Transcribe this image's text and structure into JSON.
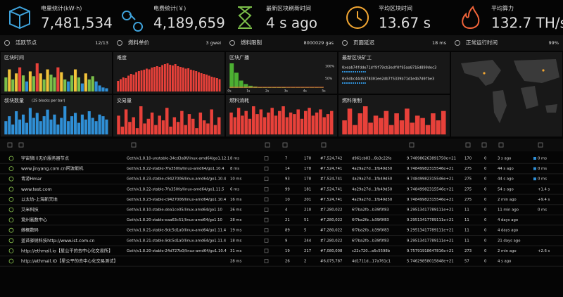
{
  "stats": [
    {
      "label": "电量统计(kW·h)",
      "value": "7,481,534",
      "color": "#3fa3dc"
    },
    {
      "label": "电费统计(￥)",
      "value": "4,189,659",
      "color": "#3fa3dc"
    },
    {
      "label": "最新区块刷新时间",
      "value": "4 s ago",
      "color": "#7cc04a"
    },
    {
      "label": "平均区块时间",
      "value": "13.67 s",
      "color": "#f2a632"
    },
    {
      "label": "平均算力",
      "value": "132.7 TH/s",
      "color": "#f2643a"
    }
  ],
  "summary": [
    {
      "label": "活跃节点",
      "value": "12/13",
      "color": "#7cc04a"
    },
    {
      "label": "燃料单价",
      "value": "3 gwei",
      "color": "#3fa3dc"
    },
    {
      "label": "燃料限制",
      "value": "8000029 gas",
      "color": "#3fa3dc"
    },
    {
      "label": "页面延迟",
      "value": "18 ms",
      "color": "#7cc04a"
    },
    {
      "label": "正常运行时间",
      "value": "99%",
      "color": "#7cc04a"
    }
  ],
  "panels": [
    {
      "title": "区块时间",
      "color": "#f2c23a",
      "values": [
        35,
        55,
        30,
        45,
        60,
        40,
        25,
        50,
        38,
        70,
        45,
        30,
        55,
        42,
        35,
        60,
        48,
        30,
        25,
        40,
        55,
        35,
        20,
        45,
        30,
        38,
        25,
        15,
        10,
        8
      ]
    },
    {
      "title": "难度",
      "color": "#e8413a",
      "values": [
        30,
        35,
        40,
        38,
        45,
        50,
        48,
        55,
        58,
        60,
        62,
        65,
        63,
        68,
        70,
        72,
        70,
        75,
        78,
        80,
        76,
        74,
        78,
        72,
        70,
        68,
        65,
        66,
        62,
        60,
        58,
        55,
        52,
        50,
        48,
        45,
        42,
        40,
        38,
        35
      ]
    },
    {
      "title": "区块广播",
      "color": "#4caf32",
      "values": [
        100,
        62,
        30,
        16,
        9,
        6,
        4,
        3,
        3,
        2,
        2,
        2,
        1,
        1,
        1,
        1,
        1,
        1,
        1,
        1
      ],
      "xticks": [
        "0s",
        "1s",
        "2s",
        "3s",
        "4s",
        "5s"
      ],
      "yticks": [
        "100%",
        "50%"
      ]
    },
    {
      "title": "最新区块矿工",
      "miners": [
        "0xeab74fdde71df9f79cb3edf0f95aa8716d890dec3",
        "0x5dbc44d5378301ee2db7f5339b71d1e4b7d0fbe3"
      ]
    },
    {
      "title": "叔块数量",
      "subtitle": "(25 blocks per bar)",
      "color": "#2f8fd6",
      "values": [
        40,
        55,
        30,
        70,
        45,
        60,
        35,
        80,
        50,
        65,
        40,
        55,
        75,
        45,
        60,
        30,
        50,
        85,
        40,
        55,
        65,
        35,
        60,
        45,
        70,
        50,
        40,
        60,
        55,
        45
      ]
    },
    {
      "title": "交易量",
      "color": "#e8413a",
      "values": [
        60,
        25,
        80,
        40,
        55,
        20,
        90,
        35,
        50,
        70,
        30,
        60,
        45,
        85,
        25,
        55,
        40,
        75,
        30,
        65,
        50,
        20,
        70,
        45,
        35,
        80,
        30,
        55
      ]
    },
    {
      "title": "燃料消耗",
      "color": "#e8413a",
      "values": [
        70,
        55,
        85,
        60,
        75,
        50,
        90,
        65,
        80,
        55,
        70,
        85,
        60,
        75,
        90,
        55,
        70,
        65,
        80,
        50,
        75,
        85,
        60,
        70,
        80,
        55,
        65,
        75
      ]
    },
    {
      "title": "燃料限制",
      "color": "#e8413a",
      "values": [
        30,
        55,
        20,
        45,
        60,
        25,
        40,
        35,
        50,
        20,
        45,
        30,
        55,
        25,
        40,
        35,
        20,
        45,
        30,
        50
      ]
    }
  ],
  "table": {
    "rows": [
      [
        "宇宙狼川无价服务器节点",
        "Geth/v1.8.10-unstable-34cd3a8f/linux-amd64/go1.12.1",
        "8 ms",
        "7",
        "178",
        "#7,524,742",
        "d961cb83...6b3c22fa",
        "9.748986263891750e+21",
        "170",
        "0",
        "3 s ago",
        "0 ms"
      ],
      [
        "www.jinyang.com.cn阿波能机",
        "Geth/v1.8.22-stable-7fa350fa/linux-amd64/go1.10.4",
        "8 ms",
        "14",
        "178",
        "#7,524,741",
        "4a29a27d...1fb49d50",
        "9.74849982315546e+21",
        "275",
        "0",
        "44 s ago",
        "0 ms"
      ],
      [
        "青游Hmar",
        "Geth/v1.8.23-stable-c9427006/linux-amd64/go1.10.4",
        "10 ms",
        "93",
        "178",
        "#7,524,741",
        "4a29a27d...1fb49d50",
        "9.74849982315546e+21",
        "275",
        "0",
        "44 s ago",
        "0 ms"
      ],
      [
        "www.test.com",
        "Geth/v1.8.22-stable-7fa350fa/linux-amd64/go1.11.5",
        "6 ms",
        "99",
        "181",
        "#7,524,741",
        "4a29a27d...1fb49d50",
        "9.74849982315546e+21",
        "275",
        "0",
        "54 s ago",
        "+1.4 s"
      ],
      [
        "以太坊-上海新天地",
        "Geth/v1.8.23-stable-c9427006/linux-amd64/go1.10.4",
        "16 ms",
        "10",
        "201",
        "#7,524,741",
        "4a29a27d...1fb49d50",
        "9.74849982315546e+21",
        "275",
        "0",
        "2 min ago",
        "+9.4 s"
      ],
      [
        "艾米科技",
        "Geth/v1.8.10-stable-dea1ce05/linux-amd64/go1.10",
        "26 ms",
        "4",
        "210",
        "#7,280,022",
        "6f7ba2fb...b39f0f83",
        "9.29513417789111e+21",
        "11",
        "0",
        "11 min ago",
        "0 ms"
      ],
      [
        "竟州氢数中心",
        "Geth/v1.8.20-stable-eaa63c51/linux-amd64/go1.10",
        "28 ms",
        "21",
        "51",
        "#7,280,022",
        "6f7ba2fb...b39f0f83",
        "9.29513417789111e+21",
        "11",
        "0",
        "4 days ago",
        null
      ],
      [
        "嫁概数码",
        "Geth/v1.8.21-stable-9dc5d1a0/linux-amd64/go1.11.4",
        "19 ms",
        "89",
        "5",
        "#7,280,022",
        "6f7ba2fb...b39f0f83",
        "9.29513417789111e+21",
        "11",
        "0",
        "4 days ago",
        null
      ],
      [
        "蓝苔驿锐科技http://www.ist.com.cn",
        "Geth/v1.8.21-stable-9dc5d1a0/linux-amd64/go1.11.4",
        "18 ms",
        "9",
        "244",
        "#7,280,022",
        "6f7ba2fb...b39f0f83",
        "9.29513417789111e+21",
        "11",
        "0",
        "21 days ago",
        null
      ],
      [
        "http://ethmall.io【星公平的去中心化交易所】",
        "Geth/v1.8.20-stable-24d727b0/linux-amd64/go1.10.4",
        "31 ms",
        "19",
        "217",
        "#7,080,008",
        "c22c720...a6c5598b",
        "9.75791918647816e+21",
        "273",
        "0",
        "2 min ago",
        "+2.6 s"
      ],
      [
        "http://ethmall.IO【星公平的去中心化交易测试】",
        null,
        "28 ms",
        "26",
        "2",
        "#6,075,787",
        "4d1711d...17a761c1",
        "5.74629858015848e+21",
        "57",
        "0",
        "4 s ago",
        null
      ]
    ]
  }
}
